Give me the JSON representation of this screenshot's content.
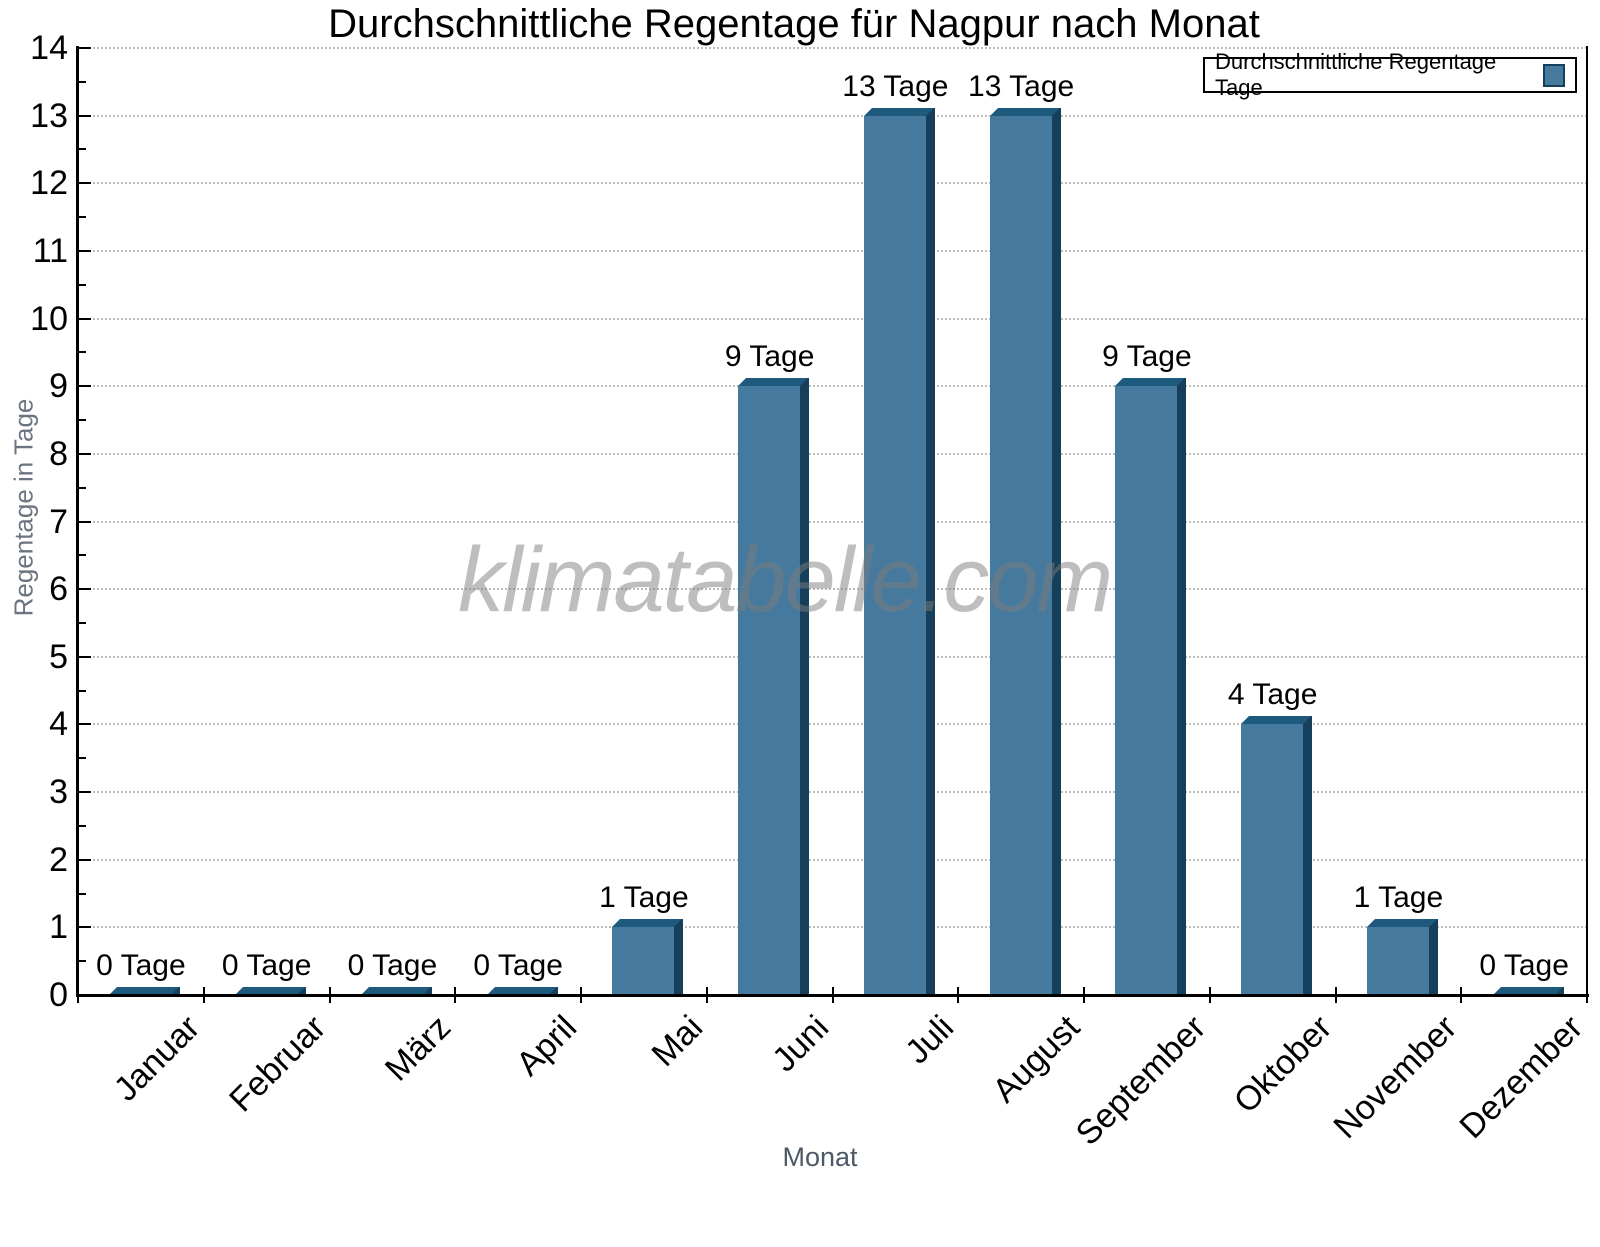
{
  "chart_data": {
    "type": "bar",
    "title": "Durchschnittliche Regentage für Nagpur nach Monat",
    "xlabel": "Monat",
    "ylabel": "Regentage in Tage",
    "watermark": "klimatabelle.com",
    "legend": {
      "label": "Durchschnittliche Regentage Tage",
      "position": "top-right"
    },
    "categories": [
      "Januar",
      "Februar",
      "März",
      "April",
      "Mai",
      "Juni",
      "Juli",
      "August",
      "September",
      "Oktober",
      "November",
      "Dezember"
    ],
    "values": [
      0,
      0,
      0,
      0,
      1,
      9,
      13,
      13,
      9,
      4,
      1,
      0
    ],
    "bar_labels": [
      "0 Tage",
      "0 Tage",
      "0 Tage",
      "0 Tage",
      "1 Tage",
      "9 Tage",
      "13 Tage",
      "13 Tage",
      "9 Tage",
      "4 Tage",
      "1 Tage",
      "0 Tage"
    ],
    "ylim": [
      0,
      14
    ],
    "y_ticks": [
      0,
      1,
      2,
      3,
      4,
      5,
      6,
      7,
      8,
      9,
      10,
      11,
      12,
      13,
      14
    ],
    "y_minor_step": 0.5,
    "grid": "horizontal-dotted",
    "colors": {
      "bar_face": "#45799d",
      "bar_top": "#1d5a7d",
      "bar_side": "#153f5a",
      "grid": "#bdbdbd",
      "axis": "#000000",
      "axis_title": "#4d5966",
      "watermark_gray": "#bdbdbd"
    }
  }
}
